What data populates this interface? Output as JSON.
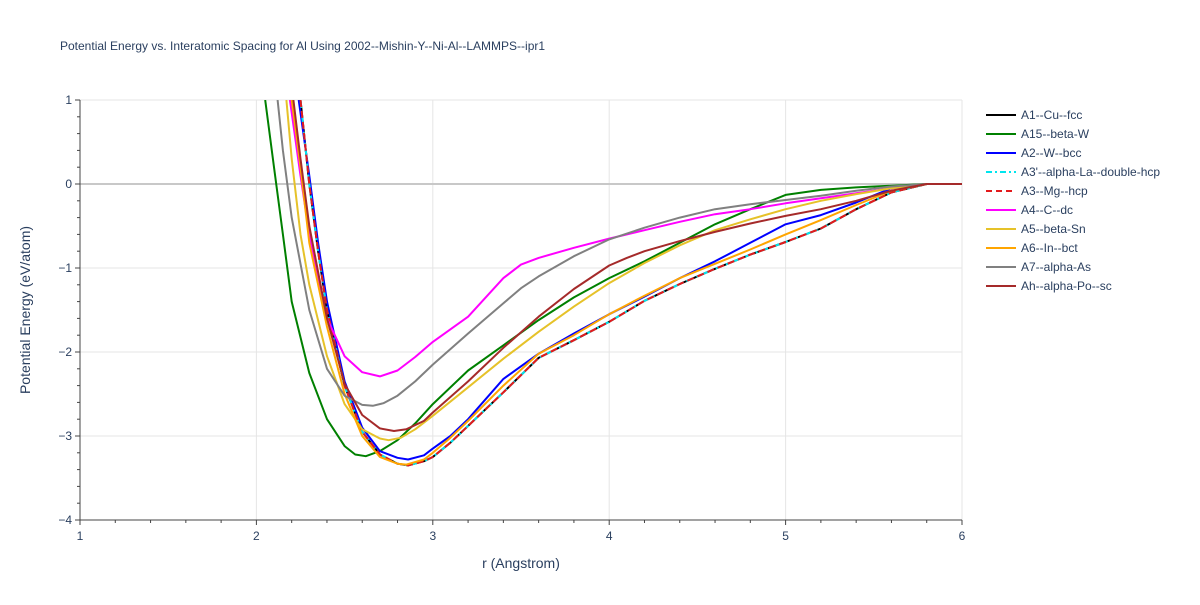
{
  "chart_data": {
    "type": "line",
    "title": "Potential Energy vs. Interatomic Spacing for Al Using 2002--Mishin-Y--Ni-Al--LAMMPS--ipr1",
    "xlabel": "r (Angstrom)",
    "ylabel": "Potential Energy (eV/atom)",
    "xlim": [
      1,
      6
    ],
    "ylim": [
      -4,
      1
    ],
    "xticks": [
      1,
      2,
      3,
      4,
      5,
      6
    ],
    "yticks": [
      -4,
      -3,
      -2,
      -1,
      0,
      1
    ],
    "xtick_labels": [
      "1",
      "2",
      "3",
      "4",
      "5",
      "6"
    ],
    "ytick_labels": [
      "−4",
      "−3",
      "−2",
      "−1",
      "0",
      "1"
    ],
    "grid": true,
    "legend_position": "right",
    "series": [
      {
        "name": "A1--Cu--fcc",
        "color": "#000000",
        "dash": "solid",
        "points": [
          [
            2.25,
            1.0
          ],
          [
            2.3,
            0.0
          ],
          [
            2.35,
            -0.8
          ],
          [
            2.4,
            -1.5
          ],
          [
            2.5,
            -2.4
          ],
          [
            2.6,
            -2.95
          ],
          [
            2.7,
            -3.22
          ],
          [
            2.8,
            -3.33
          ],
          [
            2.86,
            -3.35
          ],
          [
            2.95,
            -3.3
          ],
          [
            3.0,
            -3.25
          ],
          [
            3.1,
            -3.08
          ],
          [
            3.2,
            -2.88
          ],
          [
            3.4,
            -2.48
          ],
          [
            3.6,
            -2.07
          ],
          [
            3.8,
            -1.86
          ],
          [
            4.0,
            -1.64
          ],
          [
            4.2,
            -1.39
          ],
          [
            4.4,
            -1.19
          ],
          [
            4.6,
            -1.01
          ],
          [
            4.8,
            -0.84
          ],
          [
            5.0,
            -0.69
          ],
          [
            5.2,
            -0.53
          ],
          [
            5.4,
            -0.3
          ],
          [
            5.6,
            -0.1
          ],
          [
            5.8,
            0.0
          ],
          [
            6.0,
            0.0
          ]
        ]
      },
      {
        "name": "A15--beta-W",
        "color": "#008000",
        "dash": "solid",
        "points": [
          [
            2.05,
            1.0
          ],
          [
            2.1,
            0.2
          ],
          [
            2.15,
            -0.6
          ],
          [
            2.2,
            -1.4
          ],
          [
            2.3,
            -2.25
          ],
          [
            2.4,
            -2.8
          ],
          [
            2.5,
            -3.12
          ],
          [
            2.56,
            -3.22
          ],
          [
            2.62,
            -3.24
          ],
          [
            2.7,
            -3.18
          ],
          [
            2.8,
            -3.05
          ],
          [
            2.9,
            -2.85
          ],
          [
            3.0,
            -2.62
          ],
          [
            3.2,
            -2.22
          ],
          [
            3.4,
            -1.92
          ],
          [
            3.6,
            -1.62
          ],
          [
            3.8,
            -1.35
          ],
          [
            4.0,
            -1.12
          ],
          [
            4.2,
            -0.92
          ],
          [
            4.4,
            -0.7
          ],
          [
            4.6,
            -0.48
          ],
          [
            4.8,
            -0.3
          ],
          [
            5.0,
            -0.13
          ],
          [
            5.2,
            -0.07
          ],
          [
            5.4,
            -0.04
          ],
          [
            5.6,
            -0.02
          ],
          [
            5.8,
            0.0
          ],
          [
            6.0,
            0.0
          ]
        ]
      },
      {
        "name": "A2--W--bcc",
        "color": "#0000ff",
        "dash": "solid",
        "points": [
          [
            2.24,
            1.0
          ],
          [
            2.3,
            0.1
          ],
          [
            2.35,
            -0.7
          ],
          [
            2.4,
            -1.4
          ],
          [
            2.5,
            -2.35
          ],
          [
            2.6,
            -2.9
          ],
          [
            2.7,
            -3.18
          ],
          [
            2.8,
            -3.26
          ],
          [
            2.86,
            -3.28
          ],
          [
            2.95,
            -3.23
          ],
          [
            3.0,
            -3.15
          ],
          [
            3.1,
            -3.0
          ],
          [
            3.2,
            -2.8
          ],
          [
            3.4,
            -2.32
          ],
          [
            3.6,
            -2.02
          ],
          [
            3.8,
            -1.78
          ],
          [
            4.0,
            -1.55
          ],
          [
            4.2,
            -1.34
          ],
          [
            4.4,
            -1.12
          ],
          [
            4.6,
            -0.92
          ],
          [
            4.8,
            -0.7
          ],
          [
            5.0,
            -0.48
          ],
          [
            5.2,
            -0.37
          ],
          [
            5.4,
            -0.22
          ],
          [
            5.6,
            -0.05
          ],
          [
            5.8,
            0.0
          ],
          [
            6.0,
            0.0
          ]
        ]
      },
      {
        "name": "A3'--alpha-La--double-hcp",
        "color": "#00e5ee",
        "dash": "dashdot",
        "points": [
          [
            2.25,
            1.0
          ],
          [
            2.3,
            0.0
          ],
          [
            2.35,
            -0.8
          ],
          [
            2.4,
            -1.5
          ],
          [
            2.5,
            -2.4
          ],
          [
            2.6,
            -2.95
          ],
          [
            2.7,
            -3.22
          ],
          [
            2.8,
            -3.33
          ],
          [
            2.86,
            -3.35
          ],
          [
            2.95,
            -3.3
          ],
          [
            3.0,
            -3.25
          ],
          [
            3.1,
            -3.08
          ],
          [
            3.2,
            -2.88
          ],
          [
            3.4,
            -2.48
          ],
          [
            3.6,
            -2.07
          ],
          [
            3.8,
            -1.86
          ],
          [
            4.0,
            -1.64
          ],
          [
            4.2,
            -1.39
          ],
          [
            4.4,
            -1.19
          ],
          [
            4.6,
            -1.01
          ],
          [
            4.8,
            -0.84
          ],
          [
            5.0,
            -0.69
          ],
          [
            5.2,
            -0.53
          ],
          [
            5.4,
            -0.3
          ],
          [
            5.6,
            -0.1
          ],
          [
            5.8,
            0.0
          ],
          [
            6.0,
            0.0
          ]
        ]
      },
      {
        "name": "A3--Mg--hcp",
        "color": "#e31a1c",
        "dash": "dash",
        "points": [
          [
            2.25,
            1.0
          ],
          [
            2.3,
            0.0
          ],
          [
            2.35,
            -0.8
          ],
          [
            2.4,
            -1.5
          ],
          [
            2.5,
            -2.4
          ],
          [
            2.6,
            -2.95
          ],
          [
            2.7,
            -3.22
          ],
          [
            2.8,
            -3.33
          ],
          [
            2.86,
            -3.35
          ],
          [
            2.95,
            -3.3
          ],
          [
            3.0,
            -3.25
          ],
          [
            3.1,
            -3.08
          ],
          [
            3.2,
            -2.88
          ],
          [
            3.4,
            -2.48
          ],
          [
            3.6,
            -2.07
          ],
          [
            3.8,
            -1.86
          ],
          [
            4.0,
            -1.64
          ],
          [
            4.2,
            -1.39
          ],
          [
            4.4,
            -1.19
          ],
          [
            4.6,
            -1.01
          ],
          [
            4.8,
            -0.84
          ],
          [
            5.0,
            -0.69
          ],
          [
            5.2,
            -0.53
          ],
          [
            5.4,
            -0.3
          ],
          [
            5.6,
            -0.1
          ],
          [
            5.8,
            0.0
          ],
          [
            6.0,
            0.0
          ]
        ]
      },
      {
        "name": "A4--C--dc",
        "color": "#ff00ff",
        "dash": "solid",
        "points": [
          [
            2.19,
            1.0
          ],
          [
            2.25,
            0.1
          ],
          [
            2.3,
            -0.6
          ],
          [
            2.4,
            -1.6
          ],
          [
            2.5,
            -2.05
          ],
          [
            2.6,
            -2.24
          ],
          [
            2.7,
            -2.29
          ],
          [
            2.8,
            -2.22
          ],
          [
            2.9,
            -2.06
          ],
          [
            3.0,
            -1.88
          ],
          [
            3.2,
            -1.58
          ],
          [
            3.3,
            -1.35
          ],
          [
            3.4,
            -1.12
          ],
          [
            3.5,
            -0.96
          ],
          [
            3.6,
            -0.88
          ],
          [
            3.8,
            -0.76
          ],
          [
            4.0,
            -0.65
          ],
          [
            4.2,
            -0.55
          ],
          [
            4.4,
            -0.45
          ],
          [
            4.6,
            -0.36
          ],
          [
            4.8,
            -0.3
          ],
          [
            5.0,
            -0.23
          ],
          [
            5.2,
            -0.17
          ],
          [
            5.4,
            -0.11
          ],
          [
            5.6,
            -0.05
          ],
          [
            5.8,
            0.0
          ],
          [
            6.0,
            0.0
          ]
        ]
      },
      {
        "name": "A5--beta-Sn",
        "color": "#e6c229",
        "dash": "solid",
        "points": [
          [
            2.17,
            1.0
          ],
          [
            2.2,
            0.3
          ],
          [
            2.25,
            -0.6
          ],
          [
            2.3,
            -1.2
          ],
          [
            2.4,
            -2.05
          ],
          [
            2.5,
            -2.62
          ],
          [
            2.6,
            -2.92
          ],
          [
            2.7,
            -3.03
          ],
          [
            2.75,
            -3.05
          ],
          [
            2.82,
            -3.02
          ],
          [
            2.9,
            -2.92
          ],
          [
            3.0,
            -2.76
          ],
          [
            3.2,
            -2.42
          ],
          [
            3.4,
            -2.08
          ],
          [
            3.6,
            -1.76
          ],
          [
            3.8,
            -1.46
          ],
          [
            4.0,
            -1.18
          ],
          [
            4.2,
            -0.94
          ],
          [
            4.4,
            -0.73
          ],
          [
            4.6,
            -0.55
          ],
          [
            4.8,
            -0.42
          ],
          [
            5.0,
            -0.3
          ],
          [
            5.2,
            -0.2
          ],
          [
            5.4,
            -0.12
          ],
          [
            5.6,
            -0.05
          ],
          [
            5.8,
            0.0
          ],
          [
            6.0,
            0.0
          ]
        ]
      },
      {
        "name": "A6--In--bct",
        "color": "#ffa500",
        "dash": "solid",
        "points": [
          [
            2.2,
            1.0
          ],
          [
            2.25,
            0.2
          ],
          [
            2.3,
            -0.7
          ],
          [
            2.4,
            -1.7
          ],
          [
            2.5,
            -2.5
          ],
          [
            2.6,
            -3.0
          ],
          [
            2.7,
            -3.25
          ],
          [
            2.8,
            -3.33
          ],
          [
            2.85,
            -3.34
          ],
          [
            2.95,
            -3.28
          ],
          [
            3.0,
            -3.2
          ],
          [
            3.1,
            -3.02
          ],
          [
            3.2,
            -2.82
          ],
          [
            3.4,
            -2.4
          ],
          [
            3.6,
            -2.02
          ],
          [
            3.8,
            -1.8
          ],
          [
            4.0,
            -1.55
          ],
          [
            4.2,
            -1.33
          ],
          [
            4.4,
            -1.12
          ],
          [
            4.6,
            -0.95
          ],
          [
            4.8,
            -0.78
          ],
          [
            5.0,
            -0.6
          ],
          [
            5.2,
            -0.43
          ],
          [
            5.4,
            -0.25
          ],
          [
            5.6,
            -0.08
          ],
          [
            5.8,
            0.0
          ],
          [
            6.0,
            0.0
          ]
        ]
      },
      {
        "name": "A7--alpha-As",
        "color": "#808080",
        "dash": "solid",
        "points": [
          [
            2.12,
            1.0
          ],
          [
            2.15,
            0.4
          ],
          [
            2.2,
            -0.4
          ],
          [
            2.3,
            -1.5
          ],
          [
            2.4,
            -2.2
          ],
          [
            2.5,
            -2.52
          ],
          [
            2.6,
            -2.63
          ],
          [
            2.66,
            -2.64
          ],
          [
            2.72,
            -2.61
          ],
          [
            2.8,
            -2.52
          ],
          [
            2.9,
            -2.35
          ],
          [
            3.0,
            -2.15
          ],
          [
            3.2,
            -1.78
          ],
          [
            3.4,
            -1.42
          ],
          [
            3.5,
            -1.24
          ],
          [
            3.6,
            -1.1
          ],
          [
            3.8,
            -0.86
          ],
          [
            4.0,
            -0.66
          ],
          [
            4.2,
            -0.52
          ],
          [
            4.4,
            -0.4
          ],
          [
            4.6,
            -0.3
          ],
          [
            4.8,
            -0.24
          ],
          [
            5.0,
            -0.19
          ],
          [
            5.2,
            -0.14
          ],
          [
            5.4,
            -0.08
          ],
          [
            5.6,
            -0.03
          ],
          [
            5.8,
            0.0
          ],
          [
            6.0,
            0.0
          ]
        ]
      },
      {
        "name": "Ah--alpha-Po--sc",
        "color": "#a52a2a",
        "dash": "solid",
        "points": [
          [
            2.21,
            1.0
          ],
          [
            2.25,
            0.3
          ],
          [
            2.3,
            -0.5
          ],
          [
            2.4,
            -1.6
          ],
          [
            2.5,
            -2.38
          ],
          [
            2.6,
            -2.75
          ],
          [
            2.7,
            -2.91
          ],
          [
            2.78,
            -2.94
          ],
          [
            2.85,
            -2.92
          ],
          [
            2.95,
            -2.82
          ],
          [
            3.0,
            -2.72
          ],
          [
            3.2,
            -2.35
          ],
          [
            3.4,
            -1.95
          ],
          [
            3.6,
            -1.58
          ],
          [
            3.8,
            -1.25
          ],
          [
            4.0,
            -0.97
          ],
          [
            4.1,
            -0.88
          ],
          [
            4.2,
            -0.8
          ],
          [
            4.4,
            -0.68
          ],
          [
            4.6,
            -0.57
          ],
          [
            4.8,
            -0.47
          ],
          [
            5.0,
            -0.38
          ],
          [
            5.2,
            -0.3
          ],
          [
            5.4,
            -0.2
          ],
          [
            5.6,
            -0.08
          ],
          [
            5.8,
            0.0
          ],
          [
            6.0,
            0.0
          ]
        ]
      }
    ]
  }
}
